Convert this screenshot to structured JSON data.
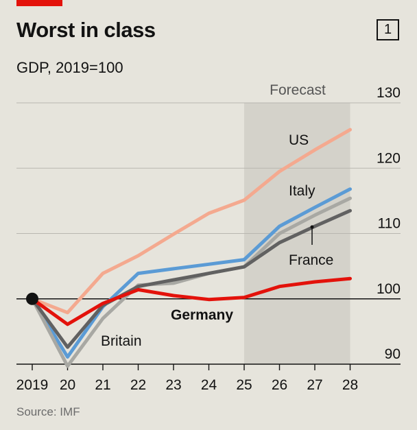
{
  "header": {
    "title": "Worst in class",
    "subtitle": "GDP, 2019=100",
    "chart_number": "1"
  },
  "footer": {
    "source": "Source: IMF"
  },
  "colors": {
    "accent_bar": "#e3120b",
    "background": "#e6e4dc",
    "forecast_band": "#d4d2ca",
    "gridline": "#b8b6b0"
  },
  "chart_data": {
    "type": "line",
    "title": "Worst in class",
    "subtitle": "GDP, 2019=100",
    "x": [
      "2019",
      "20",
      "21",
      "22",
      "23",
      "24",
      "25",
      "26",
      "27",
      "28"
    ],
    "ylim": [
      90,
      130
    ],
    "yticks": [
      90,
      100,
      110,
      120,
      130
    ],
    "grid": true,
    "forecast": {
      "label": "Forecast",
      "from": "25",
      "to": "28"
    },
    "series": [
      {
        "name": "US",
        "color": "#f4a98f",
        "values": [
          100,
          97.9,
          103.9,
          106.6,
          109.9,
          113.1,
          115.1,
          119.5,
          122.8,
          125.9
        ]
      },
      {
        "name": "Italy",
        "color": "#5b9bd5",
        "values": [
          100,
          91.1,
          98.8,
          103.9,
          104.6,
          105.3,
          106.0,
          111.1,
          114.0,
          116.8
        ]
      },
      {
        "name": "",
        "color": "#a8a8a3",
        "values": [
          100,
          89.7,
          97.0,
          102.1,
          102.4,
          103.9,
          104.9,
          110.0,
          112.8,
          115.4
        ]
      },
      {
        "name": "France",
        "color": "#616161",
        "values": [
          100,
          92.6,
          99.0,
          101.9,
          102.9,
          103.9,
          104.9,
          108.6,
          111.1,
          113.5
        ]
      },
      {
        "name": "Germany",
        "color": "#e3120b",
        "values": [
          100,
          96.1,
          99.3,
          101.4,
          100.5,
          99.9,
          100.2,
          101.9,
          102.6,
          103.1
        ]
      }
    ],
    "labels": {
      "us": "US",
      "italy": "Italy",
      "france": "France",
      "germany": "Germany",
      "britain": "Britain"
    }
  }
}
